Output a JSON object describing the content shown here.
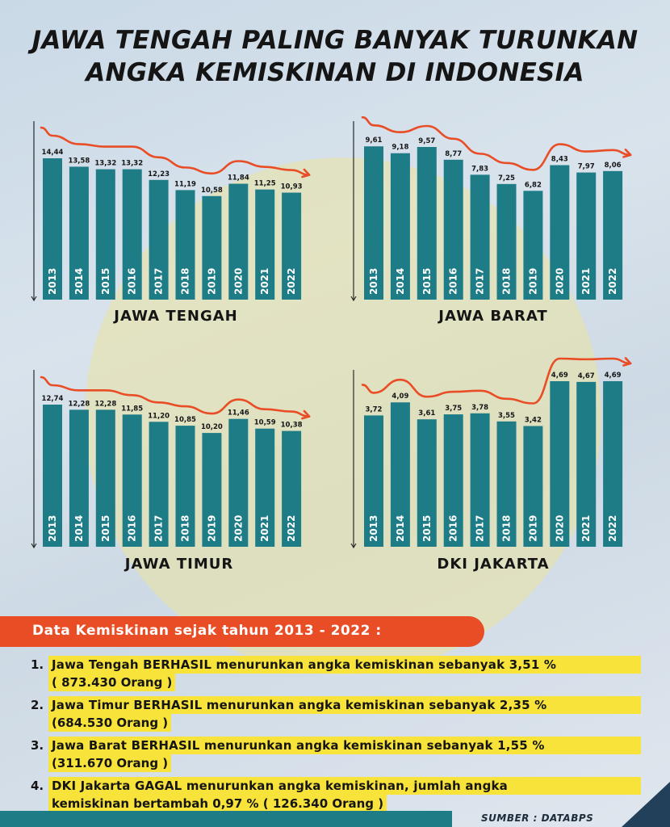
{
  "title_line1": "JAWA TENGAH PALING BANYAK TURUNKAN",
  "title_line2": "ANGKA KEMISKINAN DI INDONESIA",
  "chart_data": [
    {
      "type": "bar",
      "title": "JAWA TENGAH",
      "categories": [
        "2013",
        "2014",
        "2015",
        "2016",
        "2017",
        "2018",
        "2019",
        "2020",
        "2021",
        "2022"
      ],
      "values": [
        14.44,
        13.58,
        13.32,
        13.32,
        12.23,
        11.19,
        10.58,
        11.84,
        11.25,
        10.93
      ],
      "value_labels": [
        "14,44",
        "13,58",
        "13,32",
        "13,32",
        "12,23",
        "11,19",
        "10,58",
        "11,84",
        "11,25",
        "10,93"
      ]
    },
    {
      "type": "bar",
      "title": "JAWA BARAT",
      "categories": [
        "2013",
        "2014",
        "2015",
        "2016",
        "2017",
        "2018",
        "2019",
        "2020",
        "2021",
        "2022"
      ],
      "values": [
        9.61,
        9.18,
        9.57,
        8.77,
        7.83,
        7.25,
        6.82,
        8.43,
        7.97,
        8.06
      ],
      "value_labels": [
        "9,61",
        "9,18",
        "9,57",
        "8,77",
        "7,83",
        "7,25",
        "6,82",
        "8,43",
        "7,97",
        "8,06"
      ]
    },
    {
      "type": "bar",
      "title": "JAWA TIMUR",
      "categories": [
        "2013",
        "2014",
        "2015",
        "2016",
        "2017",
        "2018",
        "2019",
        "2020",
        "2021",
        "2022"
      ],
      "values": [
        12.74,
        12.28,
        12.28,
        11.85,
        11.2,
        10.85,
        10.2,
        11.46,
        10.59,
        10.38
      ],
      "value_labels": [
        "12,74",
        "12,28",
        "12,28",
        "11,85",
        "11,20",
        "10,85",
        "10,20",
        "11,46",
        "10,59",
        "10,38"
      ]
    },
    {
      "type": "bar",
      "title": "DKI JAKARTA",
      "categories": [
        "2013",
        "2014",
        "2015",
        "2016",
        "2017",
        "2018",
        "2019",
        "2020",
        "2021",
        "2022"
      ],
      "values": [
        3.72,
        4.09,
        3.61,
        3.75,
        3.78,
        3.55,
        3.42,
        4.69,
        4.67,
        4.69
      ],
      "value_labels": [
        "3,72",
        "4,09",
        "3,61",
        "3,75",
        "3,78",
        "3,55",
        "3,42",
        "4,69",
        "4,67",
        "4,69"
      ]
    }
  ],
  "colors": {
    "bar": "#1e7c87",
    "trend": "#e94d26",
    "highlight": "#f7e33a",
    "banner": "#e94d26"
  },
  "banner_text": "Data Kemiskinan sejak tahun 2013 - 2022 :",
  "notes": [
    {
      "num": "1.",
      "line1": "Jawa Tengah BERHASIL menurunkan angka kemiskinan sebanyak 3,51 %",
      "line2": "( 873.430 Orang )"
    },
    {
      "num": "2.",
      "line1": "Jawa Timur BERHASIL menurunkan angka kemiskinan sebanyak 2,35 %",
      "line2": "(684.530 Orang )"
    },
    {
      "num": "3.",
      "line1": "Jawa Barat BERHASIL menurunkan angka kemiskinan sebanyak 1,55 %",
      "line2": "(311.670 Orang )"
    },
    {
      "num": "4.",
      "line1": "DKI Jakarta GAGAL menurunkan angka kemiskinan, jumlah angka",
      "line2": "kemiskinan bertambah 0,97 % ( 126.340 Orang )"
    }
  ],
  "source": "SUMBER : DATABPS"
}
